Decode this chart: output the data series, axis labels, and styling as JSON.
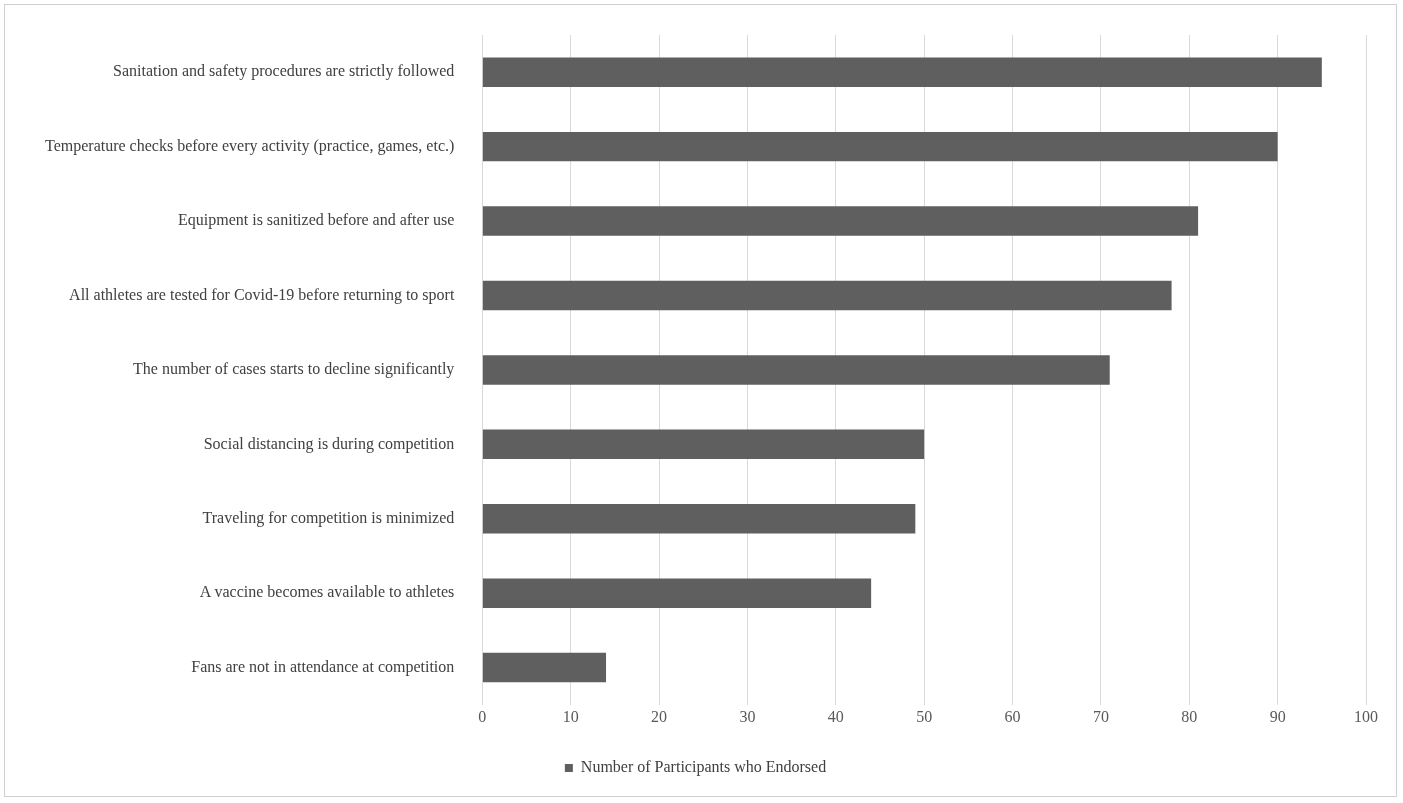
{
  "chart_data": {
    "type": "bar",
    "orientation": "horizontal",
    "categories": [
      "Sanitation and safety procedures are strictly followed",
      "Temperature checks before every activity (practice, games, etc.)",
      "Equipment is sanitized before and after use",
      "All athletes are tested for Covid-19 before returning to sport",
      "The number of cases starts to decline significantly",
      "Social distancing is during competition",
      "Traveling for competition is minimized",
      "A vaccine becomes available to athletes",
      "Fans are not in attendance at competition"
    ],
    "series": [
      {
        "name": "Number of Participants who Endorsed",
        "color": "#5f5f5f",
        "values": [
          95,
          90,
          81,
          78,
          71,
          50,
          49,
          44,
          14
        ]
      }
    ],
    "xlim": [
      0,
      100
    ],
    "xticks": [
      0,
      10,
      20,
      30,
      40,
      50,
      60,
      70,
      80,
      90,
      100
    ],
    "grid": "x",
    "legend": "bottom"
  }
}
